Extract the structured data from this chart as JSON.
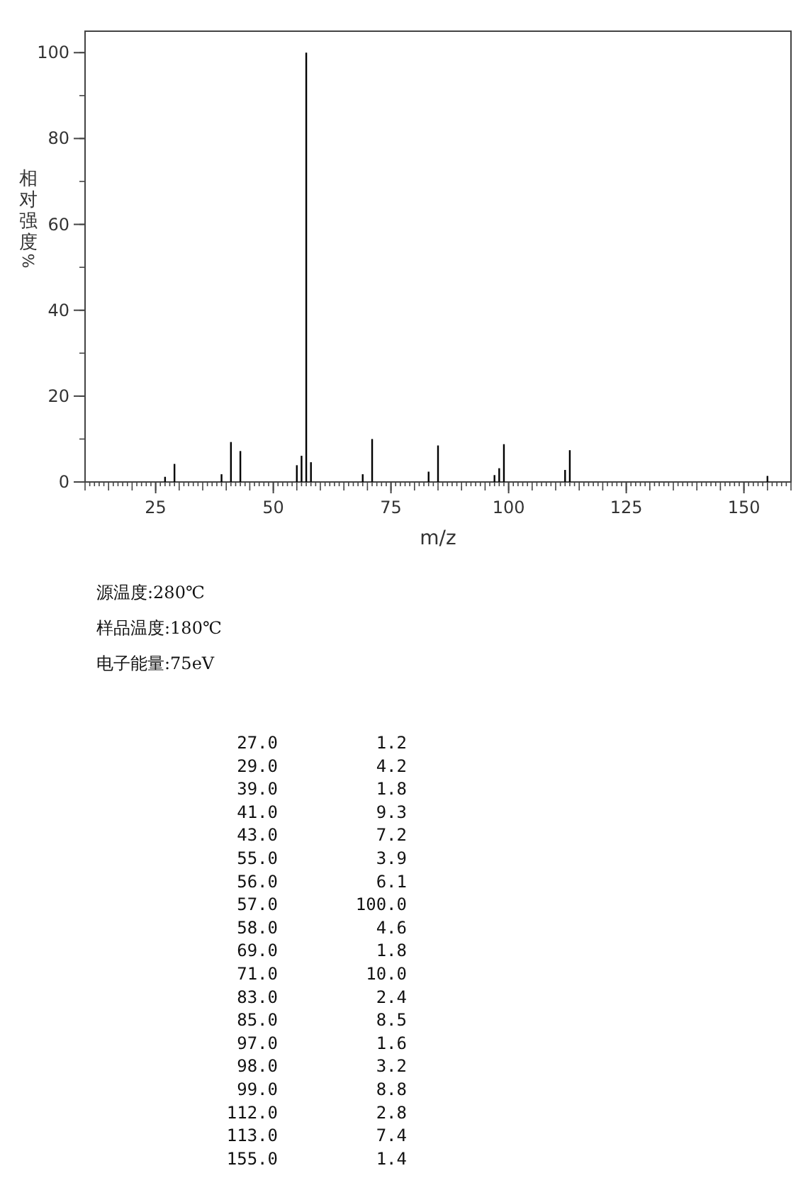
{
  "chart_data": {
    "type": "bar",
    "xlabel": "m/z",
    "ylabel": "相对强度%",
    "color": "#000000",
    "x": [
      27,
      29,
      39,
      41,
      43,
      55,
      56,
      57,
      58,
      69,
      71,
      83,
      85,
      97,
      98,
      99,
      112,
      113,
      155
    ],
    "values": [
      1.2,
      4.2,
      1.8,
      9.3,
      7.2,
      3.9,
      6.1,
      100,
      4.6,
      1.8,
      10,
      2.4,
      8.5,
      1.6,
      3.2,
      8.8,
      2.8,
      7.4,
      1.4
    ],
    "xlim": [
      10,
      160
    ],
    "ylim": [
      0,
      105
    ],
    "xticks": [
      25,
      50,
      75,
      100,
      125,
      150
    ],
    "yticks": [
      0,
      20,
      40,
      60,
      80,
      100
    ],
    "annotations": [
      "源温度:280℃",
      "样品温度:180℃",
      "电子能量:75eV",
      "27.0",
      "1.2",
      "29.0",
      "4.2",
      "39.0",
      "1.8",
      "41.0",
      "9.3",
      "43.0",
      "7.2",
      "55.0",
      "3.9",
      "56.0",
      "6.1",
      "57.0",
      "100.0",
      "58.0",
      "4.6",
      "69.0",
      "1.8",
      "71.0",
      "10.0",
      "83.0",
      "2.4",
      "85.0",
      "8.5",
      "97.0",
      "1.6",
      "98.0",
      "3.2",
      "99.0",
      "8.8",
      "112.0",
      "2.8",
      "113.0",
      "7.4",
      "155.0",
      "1.4"
    ]
  }
}
